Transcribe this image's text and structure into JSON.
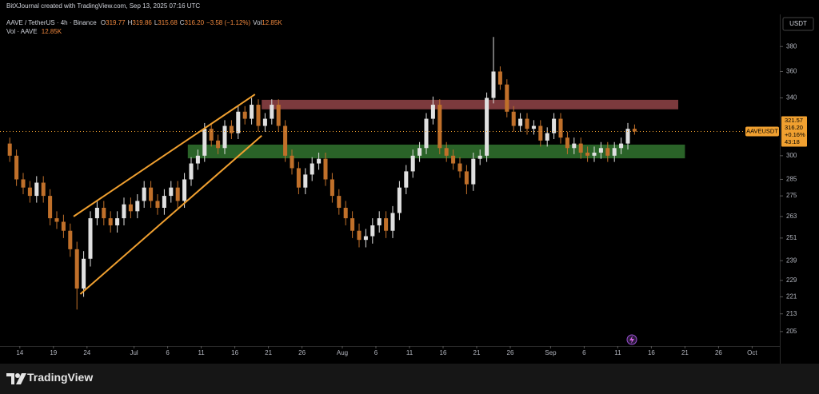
{
  "header": {
    "credit": "BitXJournal created with TradingView.com, Sep 13, 2025 07:16 UTC",
    "symbol": "AAVE / TetherUS · 4h · Binance",
    "ohlc": [
      {
        "k": "O",
        "v": "319.77"
      },
      {
        "k": "H",
        "v": "319.86"
      },
      {
        "k": "L",
        "v": "315.68"
      },
      {
        "k": "C",
        "v": "316.20"
      }
    ],
    "change": "−3.58 (−1.12%)",
    "vol_key": "Vol",
    "vol": "12.85K",
    "vol_line": "Vol · AAVE",
    "vol_line_value": "12.85K"
  },
  "chart_data": {
    "type": "candlestick",
    "log_scale": true,
    "currency": "USDT",
    "ticker": "AAVEUSDT",
    "price_box": [
      "321.57",
      "316.20",
      "+0.16%",
      "43:18"
    ],
    "up_color": "#e0e0e0",
    "down_color": "#c0702a",
    "xlim": [
      "2025-06-12",
      "2025-10-05"
    ],
    "ylim": [
      199,
      406
    ],
    "yticks": [
      380,
      360,
      340,
      300,
      285,
      275,
      263,
      251,
      239,
      229,
      221,
      213,
      205
    ],
    "xticks": [
      {
        "value": "2025-06-14",
        "label": "14"
      },
      {
        "value": "2025-06-19",
        "label": "19"
      },
      {
        "value": "2025-06-24",
        "label": "24"
      },
      {
        "value": "2025-07-01",
        "label": "Jul"
      },
      {
        "value": "2025-07-06",
        "label": "6"
      },
      {
        "value": "2025-07-11",
        "label": "11"
      },
      {
        "value": "2025-07-16",
        "label": "16"
      },
      {
        "value": "2025-07-21",
        "label": "21"
      },
      {
        "value": "2025-07-26",
        "label": "26"
      },
      {
        "value": "2025-08-01",
        "label": "Aug"
      },
      {
        "value": "2025-08-06",
        "label": "6"
      },
      {
        "value": "2025-08-11",
        "label": "11"
      },
      {
        "value": "2025-08-16",
        "label": "16"
      },
      {
        "value": "2025-08-21",
        "label": "21"
      },
      {
        "value": "2025-08-26",
        "label": "26"
      },
      {
        "value": "2025-09-01",
        "label": "Sep"
      },
      {
        "value": "2025-09-06",
        "label": "6"
      },
      {
        "value": "2025-09-11",
        "label": "11"
      },
      {
        "value": "2025-09-16",
        "label": "16"
      },
      {
        "value": "2025-09-21",
        "label": "21"
      },
      {
        "value": "2025-09-26",
        "label": "26"
      },
      {
        "value": "2025-10-01",
        "label": "Oct"
      }
    ],
    "x": [
      "2025-06-12",
      "2025-06-13",
      "2025-06-14",
      "2025-06-15",
      "2025-06-16",
      "2025-06-17",
      "2025-06-18",
      "2025-06-19",
      "2025-06-20",
      "2025-06-21",
      "2025-06-22",
      "2025-06-23",
      "2025-06-24",
      "2025-06-25",
      "2025-06-26",
      "2025-06-27",
      "2025-06-28",
      "2025-06-29",
      "2025-06-30",
      "2025-07-01",
      "2025-07-02",
      "2025-07-03",
      "2025-07-04",
      "2025-07-05",
      "2025-07-06",
      "2025-07-07",
      "2025-07-08",
      "2025-07-09",
      "2025-07-10",
      "2025-07-11",
      "2025-07-12",
      "2025-07-13",
      "2025-07-14",
      "2025-07-15",
      "2025-07-16",
      "2025-07-17",
      "2025-07-18",
      "2025-07-19",
      "2025-07-20",
      "2025-07-21",
      "2025-07-22",
      "2025-07-23",
      "2025-07-24",
      "2025-07-25",
      "2025-07-26",
      "2025-07-27",
      "2025-07-28",
      "2025-07-29",
      "2025-07-30",
      "2025-07-31",
      "2025-08-01",
      "2025-08-02",
      "2025-08-03",
      "2025-08-04",
      "2025-08-05",
      "2025-08-06",
      "2025-08-07",
      "2025-08-08",
      "2025-08-09",
      "2025-08-10",
      "2025-08-11",
      "2025-08-12",
      "2025-08-13",
      "2025-08-14",
      "2025-08-15",
      "2025-08-16",
      "2025-08-17",
      "2025-08-18",
      "2025-08-19",
      "2025-08-20",
      "2025-08-21",
      "2025-08-22",
      "2025-08-23",
      "2025-08-24",
      "2025-08-25",
      "2025-08-26",
      "2025-08-27",
      "2025-08-28",
      "2025-08-29",
      "2025-08-30",
      "2025-08-31",
      "2025-09-01",
      "2025-09-02",
      "2025-09-03",
      "2025-09-04",
      "2025-09-05",
      "2025-09-06",
      "2025-09-07",
      "2025-09-08",
      "2025-09-09",
      "2025-09-10",
      "2025-09-11",
      "2025-09-12",
      "2025-09-13"
    ],
    "open": [
      308,
      300,
      285,
      280,
      275,
      283,
      275,
      262,
      260,
      255,
      245,
      225,
      240,
      262,
      268,
      262,
      258,
      262,
      270,
      266,
      272,
      280,
      272,
      268,
      275,
      280,
      272,
      285,
      295,
      300,
      318,
      310,
      305,
      320,
      315,
      330,
      325,
      335,
      320,
      325,
      335,
      320,
      300,
      292,
      280,
      288,
      295,
      298,
      285,
      275,
      268,
      262,
      255,
      250,
      252,
      258,
      262,
      255,
      265,
      280,
      290,
      300,
      305,
      325,
      335,
      305,
      300,
      295,
      290,
      282,
      298,
      300,
      340,
      360,
      350,
      330,
      320,
      325,
      318,
      320,
      310,
      315,
      325,
      312,
      305,
      308,
      302,
      300,
      302,
      305,
      300,
      305,
      308,
      318
    ],
    "high": [
      312,
      304,
      289,
      284,
      287,
      287,
      279,
      266,
      264,
      259,
      249,
      244,
      266,
      272,
      272,
      266,
      266,
      274,
      274,
      276,
      284,
      284,
      276,
      279,
      284,
      284,
      289,
      299,
      304,
      322,
      322,
      314,
      324,
      324,
      334,
      334,
      340,
      339,
      329,
      339,
      339,
      324,
      304,
      296,
      292,
      299,
      302,
      302,
      289,
      279,
      272,
      266,
      259,
      256,
      262,
      266,
      266,
      269,
      284,
      294,
      304,
      309,
      329,
      341,
      339,
      309,
      304,
      299,
      294,
      302,
      304,
      344,
      388,
      364,
      354,
      334,
      329,
      329,
      324,
      324,
      319,
      329,
      329,
      316,
      312,
      312,
      306,
      306,
      309,
      309,
      309,
      312,
      322,
      321
    ],
    "low": [
      296,
      281,
      276,
      271,
      271,
      271,
      258,
      256,
      251,
      241,
      215,
      221,
      236,
      258,
      258,
      254,
      254,
      258,
      262,
      262,
      268,
      268,
      264,
      264,
      271,
      268,
      268,
      281,
      291,
      296,
      306,
      301,
      301,
      311,
      311,
      321,
      321,
      316,
      316,
      321,
      316,
      296,
      288,
      276,
      276,
      284,
      291,
      281,
      271,
      264,
      258,
      251,
      246,
      246,
      248,
      254,
      251,
      251,
      261,
      276,
      286,
      296,
      301,
      321,
      301,
      296,
      291,
      286,
      276,
      278,
      294,
      296,
      336,
      346,
      326,
      316,
      316,
      314,
      314,
      306,
      306,
      311,
      308,
      301,
      301,
      298,
      296,
      296,
      298,
      296,
      296,
      301,
      304,
      314
    ],
    "close": [
      300,
      285,
      280,
      275,
      283,
      275,
      262,
      260,
      255,
      245,
      225,
      240,
      262,
      268,
      262,
      258,
      262,
      270,
      266,
      272,
      280,
      272,
      268,
      275,
      280,
      272,
      285,
      295,
      300,
      318,
      310,
      305,
      320,
      315,
      330,
      325,
      335,
      320,
      325,
      335,
      320,
      300,
      292,
      280,
      288,
      295,
      298,
      285,
      275,
      268,
      262,
      255,
      250,
      252,
      258,
      262,
      255,
      265,
      280,
      290,
      300,
      305,
      325,
      335,
      305,
      300,
      295,
      290,
      282,
      298,
      300,
      340,
      360,
      350,
      330,
      320,
      325,
      318,
      320,
      310,
      315,
      325,
      312,
      305,
      308,
      302,
      300,
      302,
      305,
      300,
      305,
      308,
      318,
      316.2
    ],
    "zones": [
      {
        "start": "2025-07-20",
        "end": "2025-09-20",
        "top": 338.6,
        "bottom": 331.7,
        "color": "#8a4044"
      },
      {
        "start": "2025-07-09",
        "end": "2025-09-21",
        "top": 307.3,
        "bottom": 298.3,
        "color": "#2f6e2c"
      }
    ],
    "trendlines": [
      {
        "color": "#f0a030",
        "points": [
          {
            "x": "2025-06-22",
            "y": 263
          },
          {
            "x": "2025-07-19",
            "y": 342.6
          }
        ]
      },
      {
        "color": "#f0a030",
        "points": [
          {
            "x": "2025-06-23",
            "y": 222.3
          },
          {
            "x": "2025-07-20",
            "y": 313.3
          }
        ]
      }
    ]
  }
}
